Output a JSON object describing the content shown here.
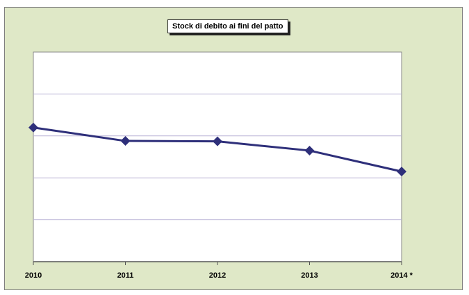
{
  "chart_data": {
    "type": "line",
    "title": "Stock di debito ai fini del patto",
    "xlabel": "",
    "ylabel": "",
    "categories": [
      "2010",
      "2011",
      "2012",
      "2013",
      "2014 *"
    ],
    "series": [
      {
        "values": [
          5.2,
          4.88,
          4.87,
          4.65,
          4.15
        ]
      }
    ],
    "ylim": [
      2,
      7
    ],
    "y_tick_labels_shown": false,
    "grid": true,
    "legend": "none",
    "colors": {
      "plot_background": "#ffffff",
      "chart_background": "#dfe8c7",
      "line": "#2e2f7a",
      "marker": "#2e2f7a",
      "gridline": "#b9b2d6"
    }
  }
}
